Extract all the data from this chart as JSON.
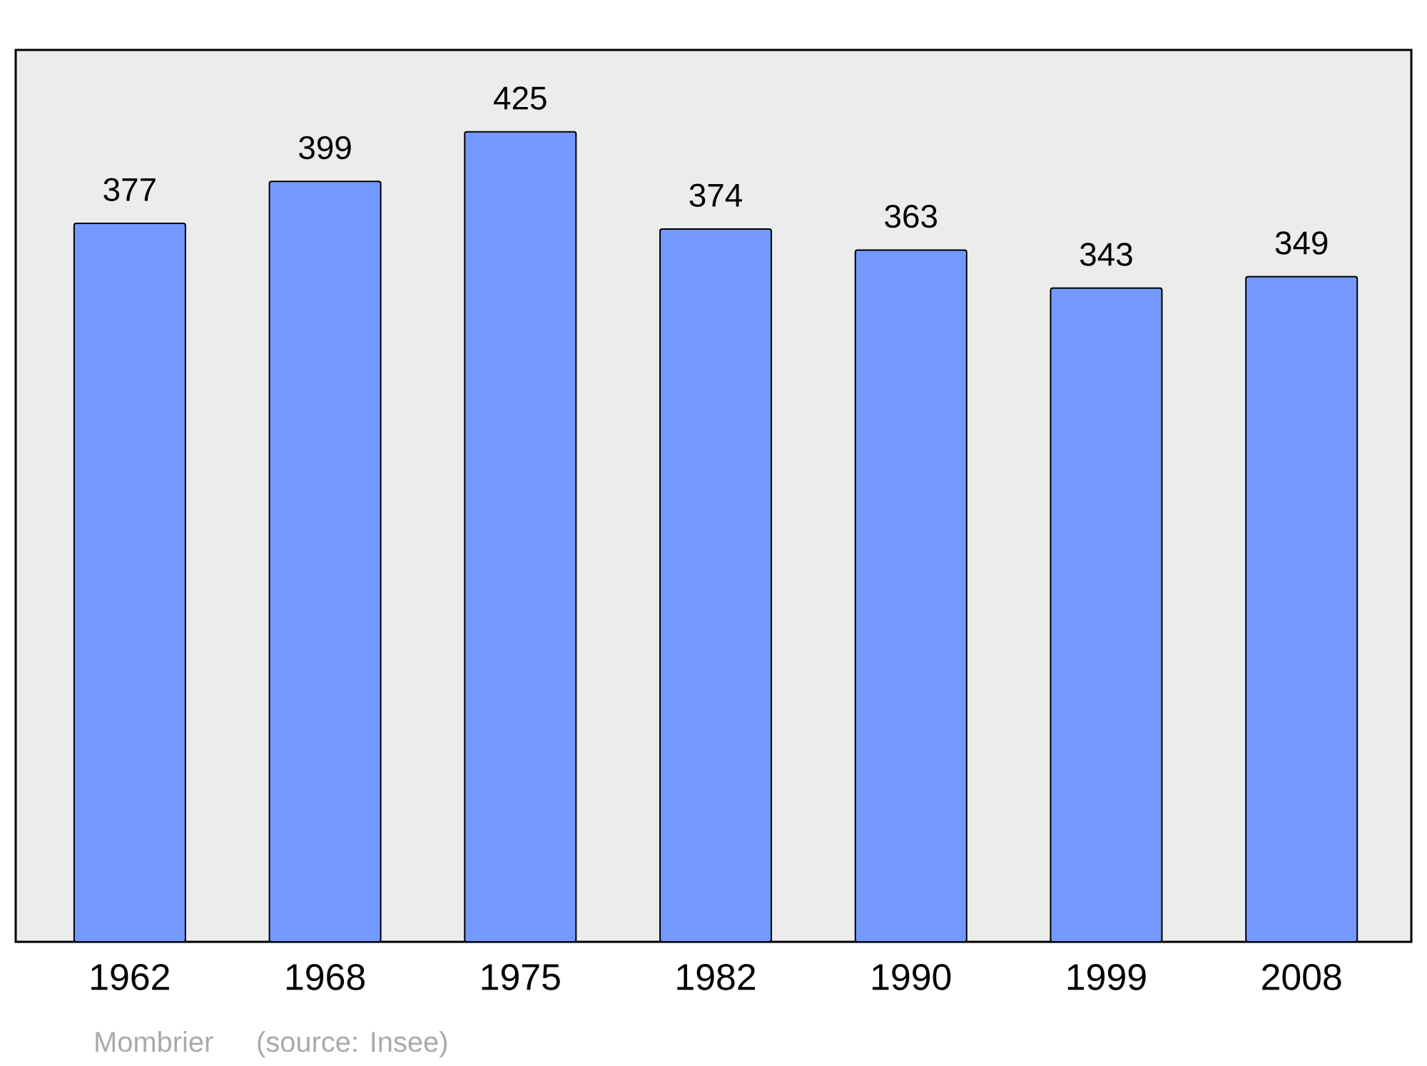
{
  "chart_data": {
    "type": "bar",
    "categories": [
      "1962",
      "1968",
      "1975",
      "1982",
      "1990",
      "1999",
      "2008"
    ],
    "values": [
      377,
      399,
      425,
      374,
      363,
      343,
      349
    ],
    "color": "#7399ff",
    "ylim": [
      0,
      468
    ],
    "data_labels": true,
    "tick_labels": "x",
    "annotations": [
      "Mombrier",
      "(source: Insee)"
    ]
  }
}
